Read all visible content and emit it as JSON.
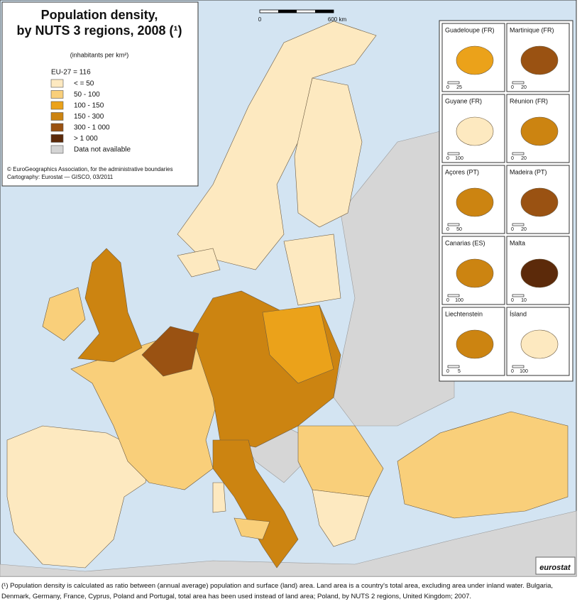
{
  "title_lines": [
    "Population density,",
    "by NUTS 3 regions, 2008 (¹)"
  ],
  "subtitle": "(inhabitants per km²)",
  "legend": {
    "heading": "EU-27 = 116",
    "items": [
      {
        "label": "< = 50",
        "color": "#fde9c0"
      },
      {
        "label": "50 - 100",
        "color": "#f9cf7a"
      },
      {
        "label": "100 - 150",
        "color": "#eba21a"
      },
      {
        "label": "150 - 300",
        "color": "#cc8411"
      },
      {
        "label": "300 - 1 000",
        "color": "#9a5212"
      },
      {
        "label": "> 1 000",
        "color": "#5c2a0a"
      },
      {
        "label": "Data not available",
        "color": "#d4d4d4"
      }
    ]
  },
  "credits": [
    "© EuroGeographics Association, for the administrative boundaries",
    "Cartography: Eurostat — GISCO, 03/2011"
  ],
  "scale_bar": [
    "0",
    "600 km"
  ],
  "insets": [
    {
      "name": "Guadeloupe (FR)",
      "scale": [
        "0",
        "25"
      ],
      "color": "#eba21a"
    },
    {
      "name": "Martinique (FR)",
      "scale": [
        "0",
        "20"
      ],
      "color": "#9a5212"
    },
    {
      "name": "Guyane (FR)",
      "scale": [
        "0",
        "100"
      ],
      "color": "#fde9c0"
    },
    {
      "name": "Réunion (FR)",
      "scale": [
        "0",
        "20"
      ],
      "color": "#cc8411"
    },
    {
      "name": "Açores (PT)",
      "scale": [
        "0",
        "50"
      ],
      "color": "#cc8411"
    },
    {
      "name": "Madeira (PT)",
      "scale": [
        "0",
        "20"
      ],
      "color": "#9a5212"
    },
    {
      "name": "Canarias (ES)",
      "scale": [
        "0",
        "100"
      ],
      "color": "#cc8411"
    },
    {
      "name": "Malta",
      "scale": [
        "0",
        "10"
      ],
      "color": "#5c2a0a"
    },
    {
      "name": "Liechtenstein",
      "scale": [
        "0",
        "5"
      ],
      "color": "#cc8411"
    },
    {
      "name": "Ísland",
      "scale": [
        "0",
        "100"
      ],
      "color": "#fde9c0"
    }
  ],
  "logo": "eurostat",
  "footnote": "(¹) Population density is calculated as ratio between (annual average) population and surface (land) area. Land area is a country's total area, excluding area under inland water. Bulgaria, Denmark, Germany, France, Cyprus, Poland and Portugal, total area has been used instead of land area; Poland, by NUTS 2 regions, United Kingdom; 2007."
}
